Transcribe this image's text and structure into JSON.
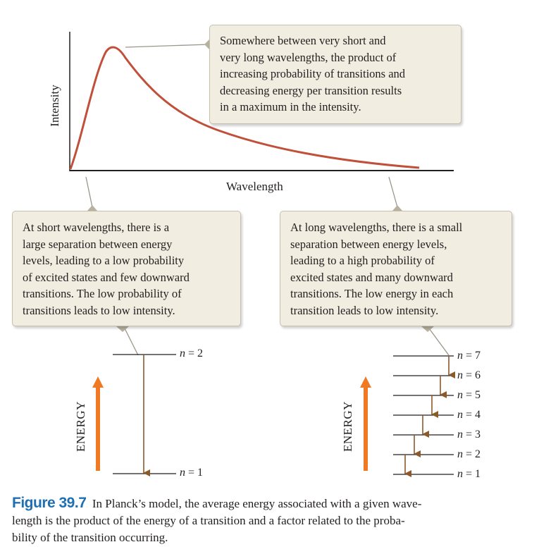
{
  "graph": {
    "xlabel": "Wavelength",
    "ylabel": "Intensity",
    "curve_color": "#c0503a"
  },
  "callouts": {
    "top": [
      "Somewhere between very short and",
      "very long wavelengths, the product of",
      "increasing probability of transitions and",
      "decreasing energy per transition results",
      "in a maximum in the intensity."
    ],
    "left": [
      "At short wavelengths, there is a",
      "large separation between energy",
      "levels, leading to a low probability",
      "of excited states and few downward",
      "transitions.  The low probability of",
      "transitions leads to low intensity."
    ],
    "right": [
      "At long wavelengths, there is a small",
      "separation between energy levels,",
      "leading to a high probability of",
      "excited states and many downward",
      "transitions. The low energy in each",
      "transition leads to low intensity."
    ],
    "fill_color": "#f1ede1"
  },
  "levels": {
    "energy_label": "ENERGY",
    "left": [
      {
        "n": "n",
        "eq": " = 2"
      },
      {
        "n": "n",
        "eq": " = 1"
      }
    ],
    "right": [
      {
        "n": "n",
        "eq": " = 7"
      },
      {
        "n": "n",
        "eq": " = 6"
      },
      {
        "n": "n",
        "eq": " = 5"
      },
      {
        "n": "n",
        "eq": " = 4"
      },
      {
        "n": "n",
        "eq": " = 3"
      },
      {
        "n": "n",
        "eq": " = 2"
      },
      {
        "n": "n",
        "eq": " = 1"
      }
    ],
    "energy_arrow_color": "#ef7a23",
    "transition_color": "#8a5a2b"
  },
  "caption": {
    "figure_number": "Figure 39.7",
    "line1": "  In Planck’s model, the average energy associated with a given wave-",
    "line2": "length is the product of the energy of a transition and a factor related to the proba-",
    "line3": "bility of the transition occurring.",
    "number_color": "#1f6fb2"
  }
}
